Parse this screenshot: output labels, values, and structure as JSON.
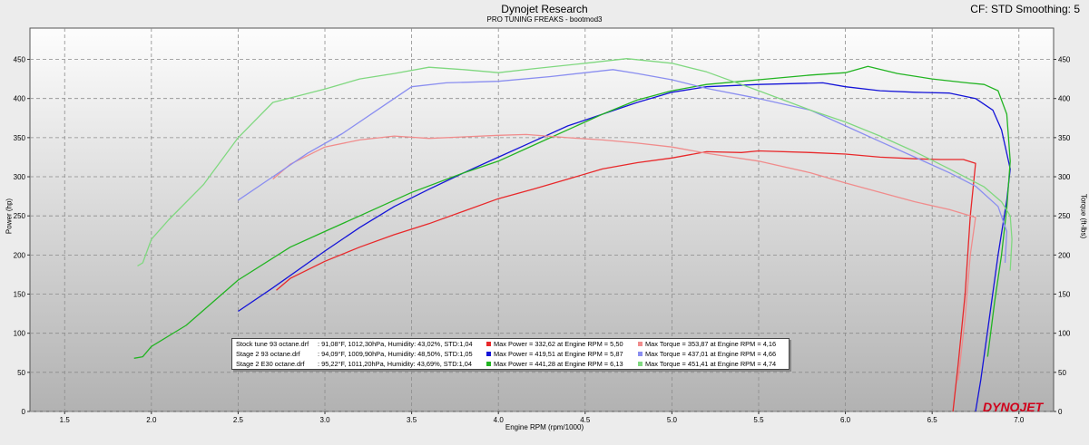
{
  "header": {
    "title": "Dynojet Research",
    "subtitle": "PRO TUNING FREAKS - bootmod3",
    "cf_info": "CF: STD Smoothing: 5"
  },
  "logo_text": "DYNOJET",
  "colors": {
    "stock_power": "#e8282a",
    "stock_torque": "#f08c8c",
    "stage2_power": "#1414d8",
    "stage2_torque": "#8a8ef0",
    "e30_power": "#22b422",
    "e30_torque": "#80d880"
  },
  "legend": {
    "rows": [
      {
        "run": "Stock tune 93 octane.drf",
        "conditions": ": 91,08°F, 1012,30hPa, Humidity: 43,02%, STD:1,04",
        "max_power": "Max Power = 332,62 at Engine RPM = 5,50",
        "max_torque": "Max Torque = 353,87 at Engine RPM = 4,16"
      },
      {
        "run": "Stage 2 93 octane.drf",
        "conditions": ": 94,09°F, 1009,90hPa, Humidity: 48,50%, STD:1,05",
        "max_power": "Max Power = 419,51 at Engine RPM = 5,87",
        "max_torque": "Max Torque = 437,01 at Engine RPM = 4,66"
      },
      {
        "run": "Stage 2 E30 octane.drf",
        "conditions": ": 95,22°F, 1011,20hPa, Humidity: 43,69%, STD:1,04",
        "max_power": "Max Power = 441,28 at Engine RPM = 6,13",
        "max_torque": "Max Torque = 451,41 at Engine RPM = 4,74"
      }
    ]
  },
  "chart_data": {
    "type": "line",
    "title": "Dynojet Research",
    "subtitle": "PRO TUNING FREAKS - bootmod3",
    "xlabel": "Engine RPM (rpm/1000)",
    "ylabel_left": "Power (hp)",
    "ylabel_right": "Torque (ft-lbs)",
    "xlim": [
      1.3,
      7.2
    ],
    "ylim": [
      0,
      490
    ],
    "x_ticks": [
      "1.5",
      "2.0",
      "2.5",
      "3.0",
      "3.5",
      "4.0",
      "4.5",
      "5.0",
      "5.5",
      "6.0",
      "6.5",
      "7.0"
    ],
    "y_ticks": [
      "0",
      "50",
      "100",
      "150",
      "200",
      "250",
      "300",
      "350",
      "400",
      "450"
    ],
    "grid": true,
    "series": [
      {
        "name": "Stock tune 93 octane.drf",
        "kind": "power",
        "color": "#e8282a",
        "x": [
          2.72,
          2.8,
          3.0,
          3.2,
          3.4,
          3.6,
          3.8,
          4.0,
          4.2,
          4.4,
          4.6,
          4.8,
          5.0,
          5.2,
          5.4,
          5.5,
          5.8,
          6.0,
          6.2,
          6.4,
          6.55,
          6.68,
          6.75,
          6.72,
          6.69,
          6.65,
          6.62
        ],
        "y": [
          155,
          170,
          192,
          210,
          226,
          240,
          256,
          272,
          284,
          297,
          310,
          318,
          324,
          332,
          331,
          333,
          331,
          329,
          325,
          323,
          322,
          322,
          317,
          250,
          150,
          60,
          0
        ]
      },
      {
        "name": "Stage 2 93 octane.drf",
        "kind": "power",
        "color": "#1414d8",
        "x": [
          2.5,
          2.7,
          3.0,
          3.2,
          3.4,
          3.6,
          3.8,
          4.0,
          4.2,
          4.4,
          4.6,
          4.8,
          5.0,
          5.2,
          5.5,
          5.87,
          6.0,
          6.2,
          6.4,
          6.6,
          6.75,
          6.85,
          6.9,
          6.95,
          6.93,
          6.88,
          6.83,
          6.78,
          6.75
        ],
        "y": [
          128,
          158,
          205,
          235,
          262,
          284,
          305,
          325,
          345,
          365,
          380,
          395,
          408,
          415,
          418,
          420,
          415,
          410,
          408,
          407,
          400,
          385,
          360,
          310,
          270,
          200,
          120,
          40,
          0
        ]
      },
      {
        "name": "Stage 2 E30 octane.drf",
        "kind": "power",
        "color": "#22b422",
        "x": [
          1.9,
          1.95,
          2.0,
          2.2,
          2.5,
          2.8,
          3.0,
          3.2,
          3.5,
          3.8,
          4.0,
          4.2,
          4.4,
          4.6,
          4.8,
          5.0,
          5.2,
          5.5,
          5.8,
          6.0,
          6.13,
          6.3,
          6.5,
          6.7,
          6.8,
          6.88,
          6.93,
          6.95,
          6.93,
          6.9,
          6.86,
          6.82
        ],
        "y": [
          68,
          70,
          83,
          110,
          168,
          210,
          230,
          250,
          280,
          305,
          320,
          340,
          360,
          380,
          398,
          410,
          418,
          424,
          430,
          433,
          441,
          432,
          425,
          420,
          418,
          410,
          380,
          320,
          260,
          200,
          140,
          70
        ]
      },
      {
        "name": "Stock tune 93 octane.drf",
        "kind": "torque",
        "color": "#f08c8c",
        "x": [
          2.7,
          2.8,
          3.0,
          3.2,
          3.4,
          3.6,
          3.8,
          4.0,
          4.16,
          4.4,
          4.6,
          4.8,
          5.0,
          5.2,
          5.5,
          5.8,
          6.0,
          6.2,
          6.4,
          6.6,
          6.75,
          6.72,
          6.69,
          6.65
        ],
        "y": [
          297,
          316,
          338,
          347,
          352,
          349,
          351,
          353,
          354,
          350,
          347,
          343,
          338,
          330,
          320,
          305,
          292,
          280,
          268,
          258,
          248,
          200,
          120,
          40
        ]
      },
      {
        "name": "Stage 2 93 octane.drf",
        "kind": "torque",
        "color": "#8a8ef0",
        "x": [
          2.5,
          2.7,
          2.9,
          3.1,
          3.3,
          3.5,
          3.7,
          4.0,
          4.3,
          4.66,
          4.8,
          5.0,
          5.2,
          5.5,
          5.8,
          6.0,
          6.2,
          6.4,
          6.6,
          6.75,
          6.88,
          6.93,
          6.92
        ],
        "y": [
          270,
          300,
          330,
          355,
          385,
          415,
          420,
          422,
          428,
          437,
          432,
          424,
          413,
          400,
          385,
          365,
          345,
          325,
          305,
          288,
          262,
          230,
          190
        ]
      },
      {
        "name": "Stage 2 E30 octane.drf",
        "kind": "torque",
        "color": "#80d880",
        "x": [
          1.92,
          1.95,
          2.0,
          2.1,
          2.3,
          2.5,
          2.7,
          3.0,
          3.2,
          3.4,
          3.6,
          3.8,
          4.0,
          4.2,
          4.5,
          4.74,
          5.0,
          5.2,
          5.5,
          5.8,
          6.0,
          6.2,
          6.4,
          6.6,
          6.8,
          6.9,
          6.95,
          6.96,
          6.95
        ],
        "y": [
          186,
          190,
          220,
          245,
          290,
          350,
          395,
          412,
          425,
          432,
          440,
          437,
          433,
          438,
          445,
          451,
          445,
          434,
          410,
          385,
          370,
          352,
          332,
          310,
          287,
          268,
          250,
          220,
          180
        ]
      }
    ]
  }
}
